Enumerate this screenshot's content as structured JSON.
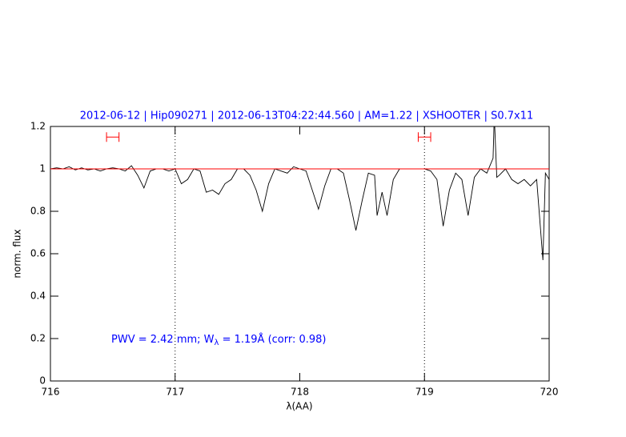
{
  "chart_data": {
    "type": "line",
    "title": "2012-06-12 | Hip090271 | 2012-06-13T04:22:44.560 | AM=1.22 | XSHOOTER | S0.7x11",
    "xlabel": "λ(AA)",
    "ylabel": "norm. flux",
    "annotation": {
      "parts": [
        "PWV = 2.42 mm; W",
        "λ",
        " = 1.19Å (corr: 0.98)"
      ],
      "color": "#0000ff"
    },
    "xlim": [
      716,
      720
    ],
    "ylim": [
      0,
      1.2
    ],
    "xticks": [
      716,
      717,
      718,
      719,
      720
    ],
    "yticks": [
      0,
      0.2,
      0.4,
      0.6,
      0.8,
      1,
      1.2
    ],
    "vlines": [
      717,
      719
    ],
    "intervals": {
      "color": "#ff0000",
      "y": 1.15,
      "ranges": [
        [
          716.45,
          716.55
        ],
        [
          718.95,
          719.05
        ]
      ]
    },
    "series": [
      {
        "color": "#000000",
        "x": [
          716.0,
          716.05,
          716.1,
          716.15,
          716.2,
          716.25,
          716.3,
          716.35,
          716.4,
          716.45,
          716.5,
          716.55,
          716.6,
          716.65,
          716.7,
          716.75,
          716.8,
          716.85,
          716.9,
          716.95,
          717.0,
          717.05,
          717.1,
          717.15,
          717.2,
          717.25,
          717.3,
          717.35,
          717.4,
          717.45,
          717.5,
          717.55,
          717.6,
          717.65,
          717.7,
          717.75,
          717.8,
          717.85,
          717.9,
          717.95,
          718.0,
          718.05,
          718.1,
          718.15,
          718.2,
          718.25,
          718.3,
          718.35,
          718.4,
          718.45,
          718.5,
          718.55,
          718.6,
          718.62,
          718.66,
          718.7,
          718.75,
          718.8,
          718.85,
          718.9,
          718.95,
          719.0,
          719.05,
          719.1,
          719.15,
          719.2,
          719.25,
          719.3,
          719.35,
          719.4,
          719.45,
          719.5,
          719.55,
          719.56,
          719.58,
          719.6,
          719.65,
          719.7,
          719.75,
          719.8,
          719.85,
          719.9,
          719.95,
          719.97,
          720.0
        ],
        "values": [
          1.0,
          1.005,
          1.0,
          1.01,
          0.995,
          1.005,
          0.995,
          1.0,
          0.99,
          1.0,
          1.005,
          1.0,
          0.99,
          1.015,
          0.97,
          0.91,
          0.99,
          1.0,
          1.0,
          0.99,
          1.0,
          0.93,
          0.95,
          1.0,
          0.99,
          0.89,
          0.9,
          0.88,
          0.93,
          0.95,
          1.0,
          1.0,
          0.97,
          0.9,
          0.8,
          0.93,
          1.0,
          0.99,
          0.98,
          1.01,
          1.0,
          0.99,
          0.9,
          0.81,
          0.92,
          1.0,
          1.0,
          0.98,
          0.85,
          0.71,
          0.85,
          0.98,
          0.97,
          0.78,
          0.89,
          0.78,
          0.95,
          1.0,
          1.0,
          1.0,
          1.0,
          1.0,
          0.99,
          0.95,
          0.73,
          0.9,
          0.98,
          0.95,
          0.78,
          0.96,
          1.0,
          0.98,
          1.05,
          1.25,
          0.96,
          0.97,
          1.0,
          0.95,
          0.93,
          0.95,
          0.92,
          0.95,
          0.57,
          0.98,
          0.95
        ]
      },
      {
        "color": "#ff0000",
        "x": [
          716,
          720
        ],
        "values": [
          1,
          1
        ]
      }
    ]
  }
}
